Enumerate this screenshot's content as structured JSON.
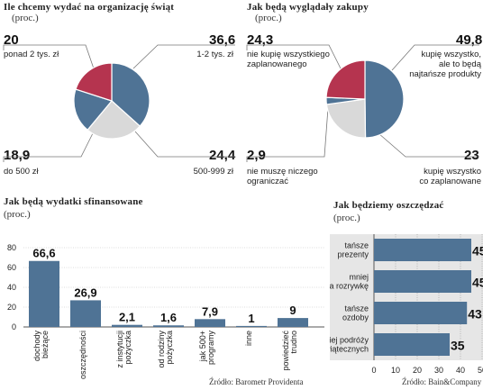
{
  "pie1": {
    "title": "Ile chcemy wydać na organizację świąt",
    "unit": "(proc.)",
    "labels": [
      {
        "value": "20",
        "text": "ponad 2 tys. zł"
      },
      {
        "value": "36,6",
        "text": "1-2 tys. zł"
      },
      {
        "value": "18,9",
        "text": "do 500 zł"
      },
      {
        "value": "24,4",
        "text": "500-999 zł"
      }
    ]
  },
  "pie2": {
    "title": "Jak będą wyglądały zakupy",
    "unit": "(proc.)",
    "labels": [
      {
        "value": "24,3",
        "text": "nie kupię wszystkiego\nzaplanowanego"
      },
      {
        "value": "49,8",
        "text": "kupię wszystko,\nale to będą\nnajtańsze produkty"
      },
      {
        "value": "2,9",
        "text": "nie muszę niczego\nograniczać"
      },
      {
        "value": "23",
        "text": "kupię wszystko\nco zaplanowane"
      }
    ]
  },
  "bar1": {
    "title": "Jak będą wydatki sfinansowane",
    "unit": "(proc.)",
    "source": "Źródło: Barometr Providenta"
  },
  "bar2": {
    "title": "Jak będziemy oszczędzać",
    "unit": "(proc.)",
    "source": "Źródło: Bain&Company"
  },
  "colors": {
    "blue": "#4f7395",
    "red": "#b5344f",
    "gray": "#d9d9d9",
    "panel_bg": "#e6e6e6"
  },
  "chart_data": [
    {
      "type": "pie",
      "title": "Ile chcemy wydać na organizację świąt",
      "unit": "(proc.)",
      "slices": [
        {
          "label": "1-2 tys. zł",
          "value": 36.6,
          "color": "#4f7395"
        },
        {
          "label": "500-999 zł",
          "value": 24.4,
          "color": "#d9d9d9"
        },
        {
          "label": "do 500 zł",
          "value": 18.9,
          "color": "#4f7395"
        },
        {
          "label": "ponad 2 tys. zł",
          "value": 20,
          "color": "#b5344f"
        }
      ]
    },
    {
      "type": "pie",
      "title": "Jak będą wyglądały zakupy",
      "unit": "(proc.)",
      "slices": [
        {
          "label": "kupię wszystko, ale to będą najtańsze produkty",
          "value": 49.8,
          "color": "#4f7395"
        },
        {
          "label": "kupię wszystko co zaplanowane",
          "value": 23,
          "color": "#d9d9d9"
        },
        {
          "label": "nie muszę niczego ograniczać",
          "value": 2.9,
          "color": "#4f7395"
        },
        {
          "label": "nie kupię wszystkiego zaplanowanego",
          "value": 24.3,
          "color": "#b5344f"
        }
      ]
    },
    {
      "type": "bar",
      "title": "Jak będą wydatki sfinansowane",
      "unit": "(proc.)",
      "categories": [
        "bieżące\ndochody",
        "oszczędności",
        "pożyczka\nz instytucji",
        "pożyczka\nod rodziny",
        "programy\njak 500+",
        "inne",
        "trudno\npowiedzieć"
      ],
      "values": [
        66.6,
        26.9,
        2.1,
        1.6,
        7.9,
        1,
        9
      ],
      "value_labels": [
        "66,6",
        "26,9",
        "2,1",
        "1,6",
        "7,9",
        "1",
        "9"
      ],
      "ylim": [
        0,
        80
      ],
      "yticks": [
        0,
        20,
        40,
        60,
        80
      ]
    },
    {
      "type": "bar",
      "orientation": "horizontal",
      "title": "Jak będziemy oszczędzać",
      "unit": "(proc.)",
      "categories": [
        "tańsze\nprezenty",
        "mniej\nna rozrywkę",
        "tańsze\nozdoby",
        "mniej podróży\nświątecznych"
      ],
      "values": [
        45,
        45,
        43,
        35
      ],
      "value_labels": [
        "45",
        "45",
        "43",
        "35"
      ],
      "xlim": [
        0,
        50
      ],
      "xticks": [
        0,
        10,
        20,
        30,
        40,
        50
      ]
    }
  ]
}
